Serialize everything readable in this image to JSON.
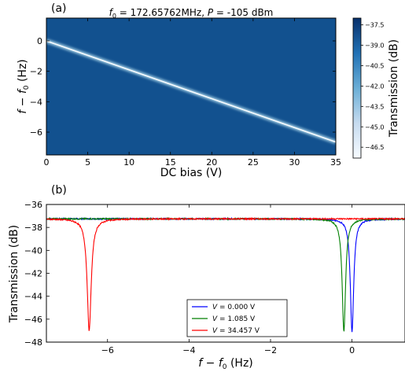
{
  "chart_data": [
    {
      "panel_label": "(a)",
      "type": "heatmap",
      "title": "f0 = 172.65762MHz, P = -105 dBm",
      "title_parts": {
        "f0_symbol": "f",
        "f0_sub": "0",
        "f0_eq": " = 172.65762MHz, ",
        "p_symbol": "P",
        "p_eq": " = -105 dBm"
      },
      "xlabel": "DC bias (V)",
      "ylabel": "f − f0 (Hz)",
      "ylabel_parts": {
        "f": "f",
        "minus": " − ",
        "f0": "f",
        "sub": "0",
        "unit": " (Hz)"
      },
      "xlim": [
        0,
        35
      ],
      "ylim": [
        -7.5,
        1.5
      ],
      "xticks": [
        0,
        5,
        10,
        15,
        20,
        25,
        30,
        35
      ],
      "xtick_labels": [
        "0",
        "5",
        "10",
        "15",
        "20",
        "25",
        "30",
        "35"
      ],
      "yticks": [
        0,
        -2,
        -4,
        -6
      ],
      "ytick_labels": [
        "0",
        "−2",
        "−4",
        "−6"
      ],
      "resonance_line": {
        "x": [
          0,
          35
        ],
        "y": [
          0,
          -6.65
        ]
      },
      "colorbar": {
        "label": "Transmission (dB)",
        "range": [
          -47.3,
          -37.0
        ],
        "ticks": [
          -37.5,
          -39.0,
          -40.5,
          -42.0,
          -43.5,
          -45.0,
          -46.5
        ],
        "tick_labels": [
          "−37.5",
          "−39.0",
          "−40.5",
          "−42.0",
          "−43.5",
          "−45.0",
          "−46.5"
        ],
        "colors": [
          "#f7fbff",
          "#c6dbef",
          "#6baed6",
          "#2171b5",
          "#08306b"
        ]
      },
      "background_color": "#12518f"
    },
    {
      "panel_label": "(b)",
      "type": "line",
      "xlabel": "f − f0 (Hz)",
      "xlabel_parts": {
        "f": "f",
        "minus": " − ",
        "f0": "f",
        "sub": "0",
        "unit": " (Hz)"
      },
      "ylabel": "Transmission (dB)",
      "xlim": [
        -7.5,
        1.3
      ],
      "ylim": [
        -48,
        -36
      ],
      "xticks": [
        -6,
        -4,
        -2,
        0
      ],
      "xtick_labels": [
        "−6",
        "−4",
        "−2",
        "0"
      ],
      "yticks": [
        -36,
        -38,
        -40,
        -42,
        -44,
        -46,
        -48
      ],
      "ytick_labels": [
        "−36",
        "−38",
        "−40",
        "−42",
        "−44",
        "−46",
        "−48"
      ],
      "legend_position": "bottom-center",
      "series": [
        {
          "name": "V = 0.000 V",
          "name_parts": {
            "sym": "V",
            "val": " = 0.000 V"
          },
          "color": "#0000ff",
          "baseline": -37.25,
          "dip_center": 0.0,
          "dip_min": -47.1,
          "width": 0.05
        },
        {
          "name": "V = 1.085 V",
          "name_parts": {
            "sym": "V",
            "val": " = 1.085 V"
          },
          "color": "#007f00",
          "baseline": -37.25,
          "dip_center": -0.2,
          "dip_min": -47.1,
          "width": 0.05
        },
        {
          "name": "V = 34.457 V",
          "name_parts": {
            "sym": "V",
            "val": " = 34.457 V"
          },
          "color": "#ff0000",
          "baseline": -37.25,
          "dip_center": -6.45,
          "dip_min": -47.0,
          "width": 0.06
        }
      ]
    }
  ]
}
